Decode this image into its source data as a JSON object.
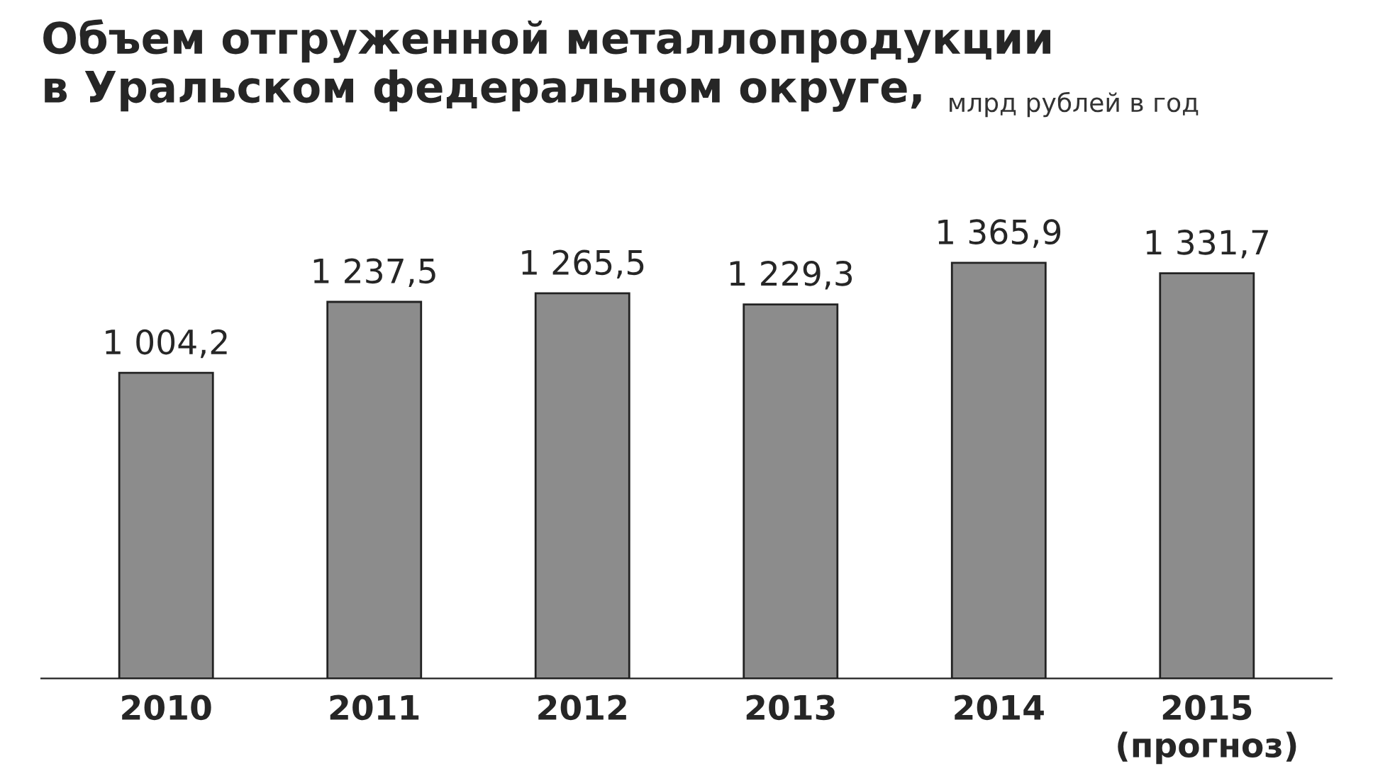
{
  "chart_data": {
    "type": "bar",
    "title": "Объем отгруженной металлопродукции\nв Уральском федеральном округе,",
    "subtitle": "млрд рублей в год",
    "categories": [
      "2010",
      "2011",
      "2012",
      "2013",
      "2014",
      "2015\n(прогноз)"
    ],
    "values": [
      1004.2,
      1237.5,
      1265.5,
      1229.3,
      1365.9,
      1331.7
    ],
    "value_labels": [
      "1 004,2",
      "1 237,5",
      "1 265,5",
      "1 229,3",
      "1 365,9",
      "1 331,7"
    ],
    "color": "#8c8c8c",
    "grid": false
  }
}
